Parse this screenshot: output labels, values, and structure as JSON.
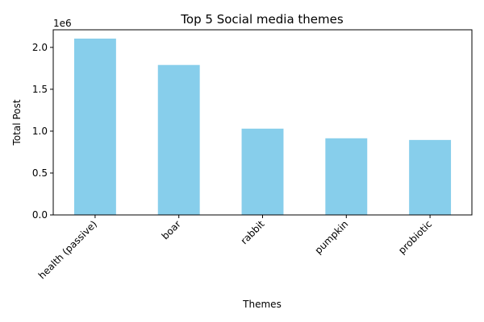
{
  "chart_data": {
    "type": "bar",
    "title": "Top 5 Social media themes",
    "xlabel": "Themes",
    "ylabel": "Total Post",
    "y_scale_label": "1e6",
    "categories": [
      "health (passive)",
      "boar",
      "rabbit",
      "pumpkin",
      "probiotic"
    ],
    "values": [
      2105000,
      1790000,
      1030000,
      915000,
      895000
    ],
    "ylim": [
      0,
      2210000
    ],
    "yticks": [
      0,
      500000,
      1000000,
      1500000,
      2000000
    ],
    "ytick_labels": [
      "0.0",
      "0.5",
      "1.0",
      "1.5",
      "2.0"
    ],
    "bar_color": "#87ceeb",
    "grid": false,
    "legend": "none"
  }
}
